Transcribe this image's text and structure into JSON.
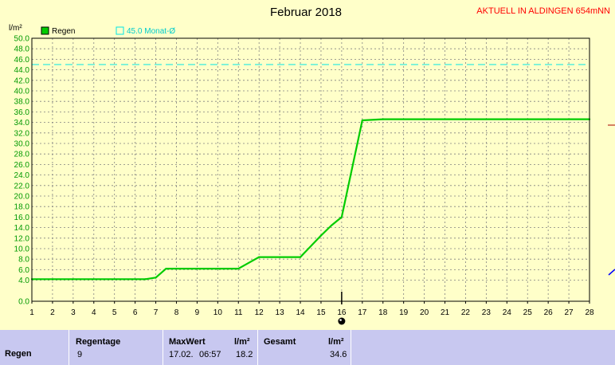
{
  "chart_data": {
    "type": "line",
    "title": "Februar 2018",
    "station": "AKTUELL IN ALDINGEN 654mNN",
    "ylabel": "l/m²",
    "xlabel": "",
    "ylim": [
      0,
      50
    ],
    "xlim": [
      1,
      28
    ],
    "x_ticks": [
      "1",
      "2",
      "3",
      "4",
      "5",
      "6",
      "7",
      "8",
      "9",
      "10",
      "11",
      "12",
      "13",
      "14",
      "15",
      "16",
      "17",
      "18",
      "19",
      "20",
      "21",
      "22",
      "23",
      "24",
      "25",
      "26",
      "27",
      "28"
    ],
    "y_ticks": [
      "0.0",
      "4.0",
      "6.0",
      "8.0",
      "10.0",
      "12.0",
      "14.0",
      "16.0",
      "18.0",
      "20.0",
      "22.0",
      "24.0",
      "26.0",
      "28.0",
      "30.0",
      "32.0",
      "34.0",
      "36.0",
      "38.0",
      "40.0",
      "42.0",
      "44.0",
      "46.0",
      "48.0",
      "50.0"
    ],
    "grid": true,
    "legend": [
      {
        "label": "Regen",
        "color": "#00cc00"
      },
      {
        "label": "45.0 Monat-Ø",
        "color": "#00e5e5"
      }
    ],
    "series": [
      {
        "name": "Regen",
        "color": "#00cc00",
        "x": [
          1,
          6.5,
          7,
          7.5,
          11,
          12,
          14,
          15,
          15.5,
          16,
          17,
          18,
          28
        ],
        "y": [
          4.2,
          4.2,
          4.5,
          6.2,
          6.2,
          8.4,
          8.4,
          12.5,
          14.4,
          16.0,
          34.4,
          34.6,
          34.6
        ]
      }
    ],
    "reference_line": {
      "name": "45.0 Monat-Ø",
      "value": 45.0,
      "color": "#00e5e5"
    },
    "current_day": 16
  },
  "info": {
    "row_label": "Regen",
    "regentage_label": "Regentage",
    "regentage_value": "9",
    "maxwert_label": "MaxWert",
    "maxwert_unit": "l/m²",
    "maxwert_date": "17.02.",
    "maxwert_time": "06:57",
    "maxwert_value": "18.2",
    "gesamt_label": "Gesamt",
    "gesamt_unit": "l/m²",
    "gesamt_value": "34.6"
  }
}
